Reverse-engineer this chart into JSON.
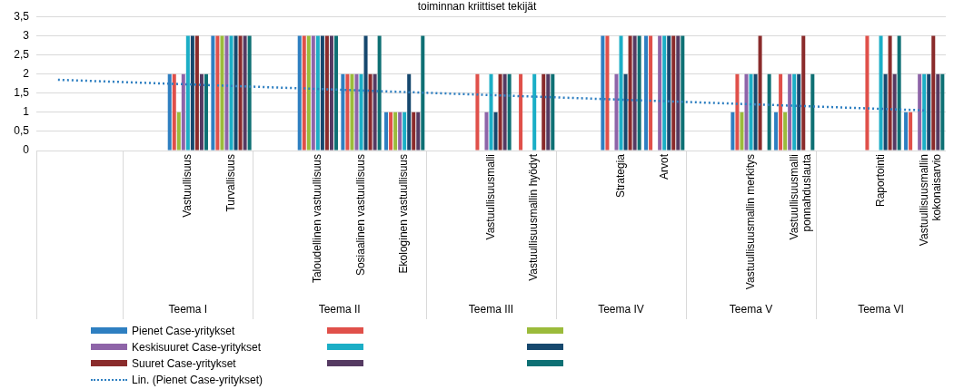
{
  "chart_data": {
    "type": "bar",
    "title": "toiminnan kriittiset tekijät",
    "categories": [
      null,
      null,
      null,
      "Vastuullisuus",
      "Turvallisuus",
      null,
      "Taloudellinen vastuullisuus",
      "Sosiaalinen vastuullisuus",
      "Ekologinen vastuullisuus",
      null,
      "Vastuullisuusmalli",
      "Vastuullisuusmallin hyödyt",
      null,
      "Strategia",
      "Arvot",
      null,
      "Vastuullisuusmallin merkitys",
      "Vastuullisuusmalli ponnahduslauta",
      null,
      "Raportointi",
      "Vastuullisuusmallin kokonaisarvio"
    ],
    "series": [
      {
        "name": "Pienet Case-yritykset",
        "color": "#2e7fc1",
        "values": [
          null,
          null,
          null,
          2,
          3,
          null,
          3,
          2,
          1,
          null,
          null,
          null,
          null,
          3,
          3,
          null,
          1,
          1,
          null,
          null,
          1
        ]
      },
      {
        "color": "#e0504a",
        "values": [
          null,
          null,
          null,
          2,
          3,
          null,
          3,
          2,
          1,
          null,
          2,
          2,
          null,
          3,
          3,
          null,
          2,
          2,
          null,
          3,
          1
        ]
      },
      {
        "color": "#9bbb3b",
        "values": [
          null,
          null,
          null,
          1,
          3,
          null,
          3,
          2,
          1,
          null,
          null,
          null,
          null,
          null,
          null,
          null,
          1,
          1,
          null,
          null,
          null
        ]
      },
      {
        "name": "Keskisuuret Case-yritykset",
        "color": "#8e64a8",
        "values": [
          null,
          null,
          null,
          2,
          3,
          null,
          3,
          2,
          1,
          null,
          1,
          null,
          null,
          2,
          3,
          null,
          2,
          2,
          null,
          null,
          2
        ]
      },
      {
        "color": "#1baec6",
        "values": [
          null,
          null,
          null,
          3,
          3,
          null,
          3,
          2,
          1,
          null,
          2,
          2,
          null,
          3,
          3,
          null,
          2,
          2,
          null,
          3,
          2
        ]
      },
      {
        "color": "#16486e",
        "values": [
          null,
          null,
          null,
          3,
          3,
          null,
          3,
          3,
          2,
          null,
          1,
          null,
          null,
          2,
          3,
          null,
          2,
          2,
          null,
          2,
          2
        ]
      },
      {
        "name": "Suuret Case-yritykset",
        "color": "#8a2b2b",
        "values": [
          null,
          null,
          null,
          3,
          3,
          null,
          3,
          2,
          1,
          null,
          2,
          2,
          null,
          3,
          3,
          null,
          3,
          3,
          null,
          3,
          3
        ]
      },
      {
        "color": "#553a62",
        "values": [
          null,
          null,
          null,
          2,
          3,
          null,
          3,
          2,
          1,
          null,
          2,
          2,
          null,
          3,
          3,
          null,
          null,
          null,
          null,
          2,
          2
        ]
      },
      {
        "color": "#0e7074",
        "values": [
          null,
          null,
          null,
          2,
          3,
          null,
          3,
          3,
          3,
          null,
          2,
          2,
          null,
          3,
          3,
          null,
          2,
          2,
          null,
          3,
          2
        ]
      },
      {
        "name": "Lin. (Pienet Case-yritykset)",
        "type": "line",
        "line_style": "dotted",
        "color": "#2e7fc1",
        "values": [
          1.85,
          null,
          null,
          null,
          null,
          null,
          null,
          null,
          null,
          null,
          null,
          null,
          null,
          null,
          null,
          null,
          null,
          null,
          null,
          null,
          1.05
        ]
      }
    ],
    "ylim": [
      0,
      3.5
    ],
    "yticks": [
      0,
      {
        "value": 0.5,
        "label": "0,5"
      },
      1,
      {
        "value": 1.5,
        "label": "1,5"
      },
      2,
      {
        "value": 2.5,
        "label": "2,5"
      },
      3,
      {
        "value": 3.5,
        "label": "3,5"
      }
    ],
    "grid": "y",
    "legend": "bottom",
    "annotations": [
      "Teema I",
      "Teema II",
      "Teema III",
      "Teema IV",
      "Teema V",
      "Teema VI"
    ]
  }
}
